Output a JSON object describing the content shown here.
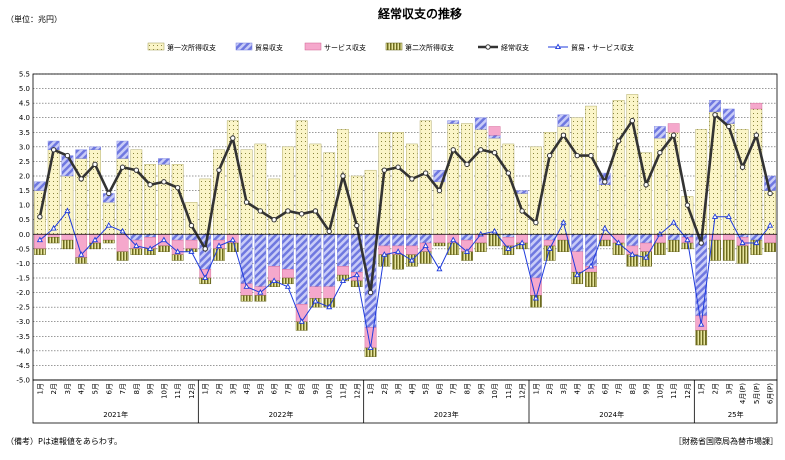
{
  "chart_data": {
    "type": "bar",
    "title": "経常収支の推移",
    "unit": "（単位：兆円）",
    "ylim": [
      -5.0,
      5.5
    ],
    "yticks": [
      "5.5",
      "5.0",
      "4.5",
      "4.0",
      "3.5",
      "3.0",
      "2.5",
      "2.0",
      "1.5",
      "1.0",
      "0.5",
      "0.0",
      "-0.5",
      "-1.0",
      "-1.5",
      "-2.0",
      "-2.5",
      "-3.0",
      "-3.5",
      "-4.0",
      "-4.5",
      "-5.0"
    ],
    "categories": [
      "1月",
      "2月",
      "3月",
      "4月",
      "5月",
      "6月",
      "7月",
      "8月",
      "9月",
      "10月",
      "11月",
      "12月",
      "1月",
      "2月",
      "3月",
      "4月",
      "5月",
      "6月",
      "7月",
      "8月",
      "9月",
      "10月",
      "11月",
      "12月",
      "1月",
      "2月",
      "3月",
      "4月",
      "5月",
      "6月",
      "7月",
      "8月",
      "9月",
      "10月",
      "11月",
      "12月",
      "1月",
      "2月",
      "3月",
      "4月",
      "5月",
      "6月",
      "7月",
      "8月",
      "9月",
      "10月",
      "11月",
      "12月",
      "1月",
      "2月",
      "3月",
      "4月(P)",
      "5月(P)",
      "6月(P)"
    ],
    "year_groups": [
      {
        "label": "2021年",
        "count": 12
      },
      {
        "label": "2022年",
        "count": 12
      },
      {
        "label": "2023年",
        "count": 12
      },
      {
        "label": "2024年",
        "count": 12
      },
      {
        "label": "25年",
        "count": 6
      }
    ],
    "series": [
      {
        "name": "第一次所得収支",
        "kind": "bar",
        "color": "#fbf5c8",
        "values": [
          1.5,
          2.9,
          2.0,
          2.6,
          2.9,
          1.1,
          2.6,
          2.9,
          2.4,
          2.4,
          2.4,
          1.1,
          1.9,
          2.9,
          3.9,
          2.9,
          3.1,
          1.9,
          3.0,
          3.9,
          3.1,
          2.8,
          3.6,
          2.0,
          2.2,
          3.5,
          3.5,
          3.1,
          3.9,
          1.8,
          3.8,
          3.8,
          3.6,
          3.3,
          3.1,
          1.4,
          3.0,
          3.5,
          3.7,
          4.0,
          4.4,
          1.7,
          4.6,
          4.8,
          2.8,
          3.3,
          3.5,
          1.3,
          3.6,
          4.2,
          3.8,
          3.6,
          4.3,
          1.5
        ]
      },
      {
        "name": "貿易収支",
        "kind": "bar",
        "color": "#9aa0ea",
        "values": [
          0.3,
          0.3,
          0.7,
          0.3,
          0.1,
          0.3,
          0.6,
          -0.2,
          -0.1,
          0.2,
          -0.2,
          -0.2,
          -1.2,
          -0.2,
          0.0,
          -1.7,
          -1.8,
          -1.1,
          -1.2,
          -2.4,
          -1.8,
          -1.8,
          -1.1,
          -1.3,
          -3.2,
          -0.4,
          -0.4,
          -0.4,
          -0.3,
          0.4,
          0.1,
          -0.2,
          0.4,
          0.1,
          -0.1,
          0.1,
          -1.5,
          -0.2,
          0.4,
          -0.6,
          -1.1,
          0.4,
          0.0,
          -0.4,
          -0.3,
          0.4,
          -0.2,
          -0.1,
          -2.8,
          0.4,
          0.5,
          -0.1,
          -0.2,
          0.5
        ]
      },
      {
        "name": "サービス収支",
        "kind": "bar",
        "color": "#f5a8cc",
        "values": [
          -0.5,
          -0.1,
          -0.2,
          -0.8,
          -0.3,
          -0.2,
          -0.6,
          -0.3,
          -0.4,
          -0.4,
          -0.5,
          -0.3,
          -0.3,
          -0.3,
          -0.3,
          -0.4,
          -0.3,
          -0.5,
          -0.3,
          -0.6,
          -0.4,
          -0.4,
          -0.3,
          -0.3,
          -0.7,
          -0.3,
          -0.3,
          -0.3,
          -0.3,
          -0.3,
          -0.3,
          -0.4,
          -0.3,
          0.3,
          -0.3,
          -0.3,
          -0.6,
          -0.2,
          -0.2,
          -0.7,
          -0.2,
          -0.2,
          -0.3,
          -0.3,
          -0.3,
          -0.3,
          0.3,
          -0.2,
          -0.5,
          -0.2,
          -0.2,
          -0.3,
          0.2,
          -0.3
        ]
      },
      {
        "name": "第二次所得収支",
        "kind": "bar",
        "color": "#a8a630",
        "values": [
          -0.2,
          -0.2,
          -0.3,
          -0.2,
          -0.2,
          -0.1,
          -0.3,
          -0.2,
          -0.2,
          -0.2,
          -0.2,
          -0.1,
          -0.2,
          -0.4,
          -0.3,
          -0.2,
          -0.2,
          -0.2,
          -0.2,
          -0.3,
          -0.3,
          -0.3,
          -0.2,
          -0.2,
          -0.3,
          -0.4,
          -0.5,
          -0.4,
          -0.4,
          -0.1,
          -0.4,
          -0.3,
          -0.3,
          -0.4,
          -0.3,
          -0.2,
          -0.4,
          -0.5,
          -0.4,
          -0.4,
          -0.5,
          -0.2,
          -0.4,
          -0.4,
          -0.5,
          -0.4,
          -0.4,
          -0.2,
          -0.5,
          -0.7,
          -0.7,
          -0.6,
          -0.5,
          -0.3
        ]
      },
      {
        "name": "経常収支",
        "kind": "line",
        "color": "#333333",
        "values": [
          0.6,
          2.9,
          2.7,
          1.9,
          2.4,
          1.4,
          2.3,
          2.2,
          1.7,
          1.8,
          1.6,
          0.3,
          -0.5,
          2.2,
          3.3,
          1.1,
          0.8,
          0.5,
          0.8,
          0.7,
          0.8,
          0.1,
          2.0,
          0.3,
          -2.0,
          2.2,
          2.3,
          1.9,
          2.1,
          1.5,
          2.9,
          2.4,
          2.9,
          2.8,
          2.1,
          0.8,
          0.4,
          2.7,
          3.4,
          2.7,
          2.7,
          1.8,
          3.2,
          3.9,
          1.7,
          2.8,
          3.4,
          1.0,
          -0.3,
          4.1,
          3.7,
          2.3,
          3.4,
          1.4
        ]
      },
      {
        "name": "貿易・サービス収支",
        "kind": "line",
        "color": "#1f3bdc",
        "values": [
          -0.2,
          0.2,
          0.8,
          -0.7,
          -0.2,
          0.3,
          0.1,
          -0.4,
          -0.5,
          -0.2,
          -0.6,
          -0.6,
          -1.5,
          -0.4,
          -0.2,
          -1.8,
          -2.0,
          -1.6,
          -1.8,
          -3.0,
          -2.3,
          -2.5,
          -1.6,
          -1.4,
          -3.9,
          -0.7,
          -0.6,
          -0.9,
          -0.4,
          -1.2,
          -0.2,
          -0.6,
          0.0,
          0.1,
          -0.5,
          -0.3,
          -2.2,
          -0.5,
          0.4,
          -1.4,
          -1.1,
          0.2,
          -0.3,
          -0.7,
          -0.8,
          0.0,
          0.4,
          -0.2,
          -3.1,
          0.6,
          0.6,
          -0.3,
          -0.3,
          0.3
        ]
      }
    ]
  },
  "footnote_left": "（備考）Pは速報値をあらわす。",
  "footnote_right": "［財務省国際局為替市場課］"
}
